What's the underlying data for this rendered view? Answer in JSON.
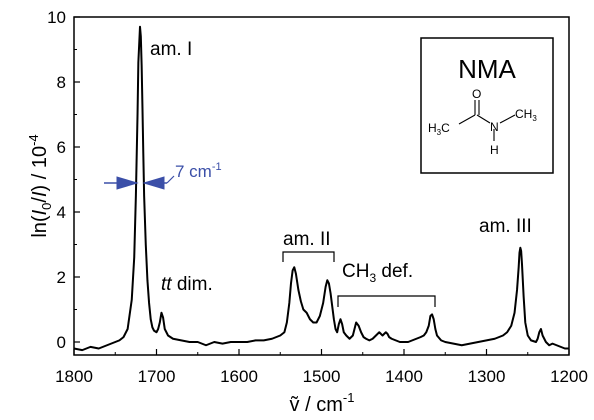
{
  "chart_data": {
    "type": "line",
    "title": "",
    "xlabel": "ṽ / cm",
    "xlabel_sup": "-1",
    "ylabel_prefix": "ln(",
    "ylabel_i0": "I",
    "ylabel_i0_sub": "0",
    "ylabel_mid": "/",
    "ylabel_i": "I",
    "ylabel_suffix": ") / 10",
    "ylabel_sup": "-4",
    "xlim": [
      1800,
      1200
    ],
    "ylim": [
      -0.4,
      10
    ],
    "x_reversed": true,
    "grid": false,
    "xticks": [
      1800,
      1700,
      1600,
      1500,
      1400,
      1300,
      1200
    ],
    "yticks": [
      0,
      2,
      4,
      6,
      8,
      10
    ],
    "series": [
      {
        "color": "#000000",
        "x": [
          1800,
          1790,
          1780,
          1770,
          1760,
          1750,
          1745,
          1740,
          1735,
          1730,
          1727,
          1725,
          1723,
          1722,
          1720,
          1719,
          1718,
          1717,
          1716,
          1715,
          1713,
          1711,
          1709,
          1707,
          1705,
          1703,
          1700,
          1698,
          1696,
          1694,
          1692,
          1690,
          1686,
          1680,
          1670,
          1660,
          1650,
          1640,
          1630,
          1620,
          1610,
          1600,
          1590,
          1580,
          1570,
          1560,
          1550,
          1545,
          1542,
          1539,
          1537,
          1535,
          1533,
          1531,
          1528,
          1525,
          1522,
          1518,
          1514,
          1510,
          1506,
          1502,
          1498,
          1495,
          1493,
          1491,
          1489,
          1487,
          1485,
          1483,
          1481,
          1479,
          1477,
          1475,
          1473,
          1470,
          1466,
          1462,
          1460,
          1458,
          1455,
          1452,
          1449,
          1446,
          1442,
          1438,
          1434,
          1430,
          1426,
          1422,
          1420,
          1418,
          1415,
          1410,
          1405,
          1400,
          1395,
          1390,
          1385,
          1380,
          1376,
          1373,
          1370,
          1368,
          1366,
          1364,
          1362,
          1360,
          1355,
          1350,
          1340,
          1330,
          1320,
          1310,
          1300,
          1290,
          1280,
          1275,
          1270,
          1266,
          1263,
          1261,
          1260,
          1259,
          1258,
          1257,
          1255,
          1253,
          1250,
          1246,
          1240,
          1238,
          1236,
          1234,
          1232,
          1228,
          1224,
          1220,
          1215,
          1210,
          1205,
          1200
        ],
        "y": [
          -0.2,
          -0.25,
          -0.15,
          -0.2,
          -0.1,
          0.0,
          0.05,
          0.15,
          0.4,
          1.3,
          2.6,
          4.5,
          7.0,
          8.6,
          9.7,
          9.4,
          8.5,
          7.2,
          5.8,
          4.5,
          3.0,
          1.9,
          1.2,
          0.7,
          0.45,
          0.35,
          0.3,
          0.4,
          0.6,
          0.9,
          0.75,
          0.4,
          0.2,
          0.1,
          0.05,
          0.0,
          0.0,
          -0.1,
          0.0,
          -0.05,
          0.0,
          0.0,
          0.0,
          0.05,
          0.05,
          0.1,
          0.2,
          0.3,
          0.6,
          1.2,
          1.8,
          2.2,
          2.3,
          2.1,
          1.6,
          1.25,
          1.0,
          0.9,
          0.7,
          0.6,
          0.6,
          0.8,
          1.2,
          1.7,
          1.9,
          1.8,
          1.5,
          1.1,
          0.7,
          0.4,
          0.3,
          0.55,
          0.7,
          0.55,
          0.3,
          0.2,
          0.1,
          0.2,
          0.4,
          0.6,
          0.5,
          0.3,
          0.15,
          0.1,
          0.05,
          0.1,
          0.2,
          0.3,
          0.2,
          0.3,
          0.25,
          0.15,
          0.1,
          0.05,
          0.0,
          0.0,
          0.0,
          0.05,
          0.1,
          0.15,
          0.2,
          0.3,
          0.5,
          0.8,
          0.85,
          0.7,
          0.4,
          0.2,
          0.05,
          0.0,
          -0.05,
          -0.1,
          -0.05,
          0.0,
          0.05,
          0.1,
          0.2,
          0.3,
          0.5,
          0.9,
          1.6,
          2.3,
          2.75,
          2.9,
          2.8,
          2.4,
          1.4,
          0.6,
          0.2,
          0.05,
          0.0,
          0.1,
          0.3,
          0.4,
          0.2,
          0.0,
          -0.1,
          -0.05,
          -0.1,
          -0.15,
          -0.2,
          -0.2
        ]
      }
    ],
    "annotations": {
      "am1": "am. I",
      "tt_italic": "tt",
      "tt_rest": " dim.",
      "am2": "am. II",
      "ch3_a": "CH",
      "ch3_sub": "3",
      "ch3_b": " def.",
      "am3": "am. III",
      "fwhm": "7 cm",
      "fwhm_sup": "-1"
    },
    "inset": {
      "title": "NMA",
      "h3c": "H",
      "h3c_sub": "3",
      "h3c_c": "C",
      "o": "O",
      "n": "N",
      "h": "H",
      "ch3": "CH",
      "ch3_sub": "3"
    }
  },
  "colors": {
    "annotation_blue": "#3b4fa8",
    "line": "#000000"
  }
}
